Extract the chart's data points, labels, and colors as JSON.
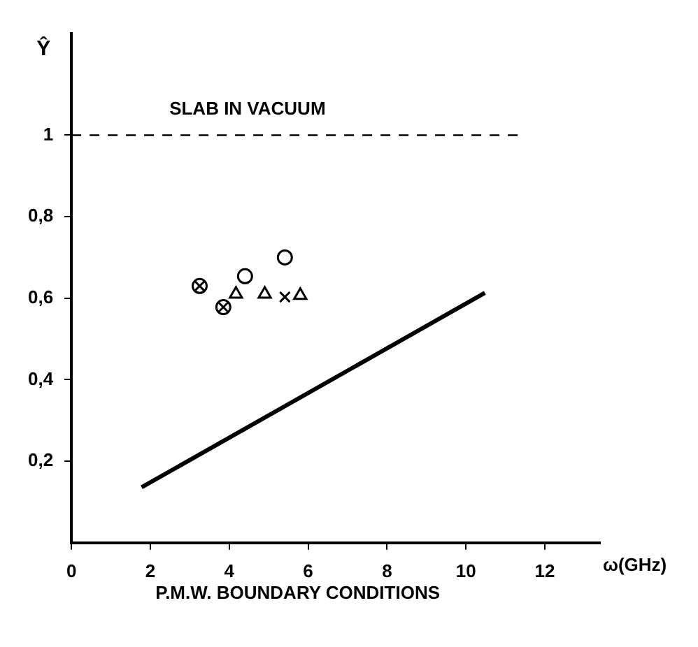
{
  "chart_data": {
    "type": "scatter",
    "xlabel": "ω(GHz)",
    "ylabel": "Ŷ",
    "annotations": [
      "P.M.W. BOUNDARY CONDITIONS"
    ],
    "xlim": [
      0,
      13.4
    ],
    "ylim": [
      0,
      1.25
    ],
    "xticks": [
      0,
      2,
      4,
      6,
      8,
      10,
      12
    ],
    "yticks": [
      {
        "value": 0.2,
        "label": "0,2"
      },
      {
        "value": 0.4,
        "label": "0,4"
      },
      {
        "value": 0.6,
        "label": "0,6"
      },
      {
        "value": 0.8,
        "label": "0,8"
      },
      1
    ],
    "grid": false,
    "legend": false,
    "ref_lines": [
      {
        "axis": "y",
        "value": 1,
        "label": "SLAB IN VACUUM",
        "color": "#000000",
        "line_style": "dashed"
      }
    ],
    "series": [
      {
        "marker": "circle",
        "color": "#000000",
        "x": [
          3.25,
          3.85,
          4.4,
          5.41
        ],
        "values": [
          0.63,
          0.578,
          0.654,
          0.7
        ]
      },
      {
        "marker": "cross",
        "color": "#000000",
        "x": [
          3.25,
          3.85,
          5.41
        ],
        "values": [
          0.63,
          0.578,
          0.603
        ]
      },
      {
        "marker": "triangle",
        "color": "#000000",
        "x": [
          4.17,
          4.9,
          5.8
        ],
        "values": [
          0.61,
          0.61,
          0.607
        ]
      },
      {
        "type": "line",
        "marker": "none",
        "line_style": "solid",
        "color": "#000000",
        "x": [
          1.78,
          10.48
        ],
        "values": [
          0.136,
          0.613
        ]
      }
    ]
  }
}
